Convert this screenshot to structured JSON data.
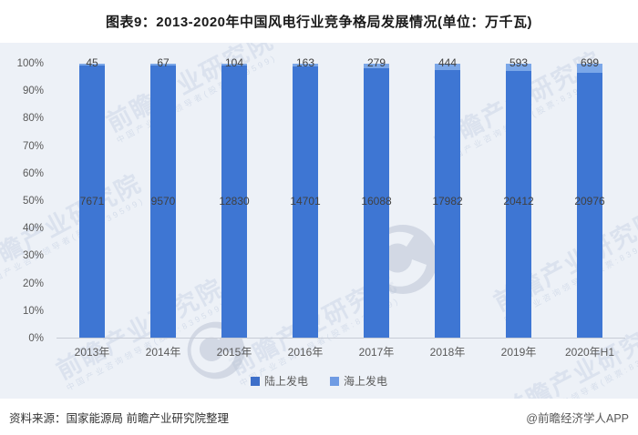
{
  "page": {
    "title": "图表9：2013-2020年中国风电行业竞争格局发展情况(单位：万千瓦)",
    "source_left": "资料来源：国家能源局 前瞻产业研究院整理",
    "source_right": "@前瞻经济学人APP"
  },
  "colors": {
    "onshore": "#3e76d3",
    "offshore": "#7ba7e8",
    "legend_onshore": "#3d6fc9",
    "legend_offshore": "#6f9be3",
    "chart_background": "#edf1f7",
    "axis_text": "#595959",
    "value_label_text": "#404040"
  },
  "watermark": {
    "text": "前瞻产业研究院",
    "subtext": "中国产业咨询领导者(股票:839599)",
    "logo": "qianzhan-circle-logo"
  },
  "chart_data": {
    "type": "bar",
    "stacked": true,
    "percent": true,
    "title": "图表9：2013-2020年中国风电行业竞争格局发展情况(单位：万千瓦)",
    "unit": "万千瓦",
    "categories": [
      "2013年",
      "2014年",
      "2015年",
      "2016年",
      "2017年",
      "2018年",
      "2019年",
      "2020年H1"
    ],
    "series": [
      {
        "name": "陆上发电",
        "color": "#3e76d3",
        "values": [
          7671,
          9570,
          12830,
          14701,
          16088,
          17982,
          20412,
          20976
        ]
      },
      {
        "name": "海上发电",
        "color": "#7ba7e8",
        "values": [
          45,
          67,
          104,
          163,
          279,
          444,
          593,
          699
        ]
      }
    ],
    "yticks": [
      "100%",
      "90%",
      "80%",
      "70%",
      "60%",
      "50%",
      "40%",
      "30%",
      "20%",
      "10%",
      "0%"
    ],
    "ylim": [
      0,
      100
    ],
    "ylabel": "",
    "xlabel": "",
    "grid": false,
    "legend_position": "bottom"
  }
}
